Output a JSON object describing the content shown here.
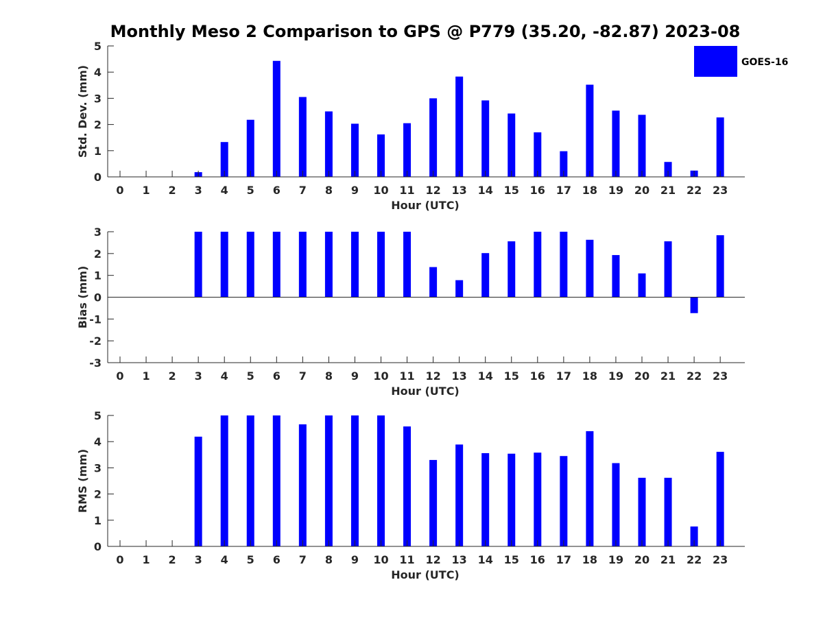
{
  "title": "Monthly Meso 2 Comparison to GPS @ P779 (35.20, -82.87) 2023-08",
  "legend": {
    "label": "GOES-16",
    "color": "#0000ff",
    "placement": "top-right"
  },
  "chart_data": [
    {
      "type": "bar",
      "ylabel": "Std. Dev. (mm)",
      "xlabel": "Hour (UTC)",
      "categories": [
        "0",
        "1",
        "2",
        "3",
        "4",
        "5",
        "6",
        "7",
        "8",
        "9",
        "10",
        "11",
        "12",
        "13",
        "14",
        "15",
        "16",
        "17",
        "18",
        "19",
        "20",
        "21",
        "22",
        "23"
      ],
      "yticks": [
        "0",
        "1",
        "2",
        "3",
        "4",
        "5"
      ],
      "ylim": [
        0,
        5
      ],
      "grid": false,
      "series": [
        {
          "name": "GOES-16",
          "values": [
            null,
            null,
            null,
            0.18,
            1.33,
            2.18,
            4.43,
            3.05,
            2.5,
            2.03,
            1.62,
            2.05,
            3.0,
            3.83,
            2.92,
            2.42,
            1.7,
            0.98,
            3.52,
            2.53,
            2.37,
            0.57,
            0.24,
            2.27
          ]
        }
      ]
    },
    {
      "type": "bar",
      "ylabel": "Bias (mm)",
      "xlabel": "Hour (UTC)",
      "categories": [
        "0",
        "1",
        "2",
        "3",
        "4",
        "5",
        "6",
        "7",
        "8",
        "9",
        "10",
        "11",
        "12",
        "13",
        "14",
        "15",
        "16",
        "17",
        "18",
        "19",
        "20",
        "21",
        "22",
        "23"
      ],
      "yticks": [
        "-3",
        "-2",
        "-1",
        "0",
        "1",
        "2",
        "3"
      ],
      "ylim": [
        -3,
        3
      ],
      "grid": false,
      "series": [
        {
          "name": "GOES-16",
          "values": [
            null,
            null,
            null,
            3.0,
            3.0,
            3.0,
            3.0,
            3.0,
            3.0,
            3.0,
            3.0,
            3.0,
            1.38,
            0.78,
            2.02,
            2.56,
            3.0,
            3.0,
            2.63,
            1.93,
            1.09,
            2.56,
            -0.73,
            2.84
          ]
        }
      ]
    },
    {
      "type": "bar",
      "ylabel": "RMS (mm)",
      "xlabel": "Hour (UTC)",
      "categories": [
        "0",
        "1",
        "2",
        "3",
        "4",
        "5",
        "6",
        "7",
        "8",
        "9",
        "10",
        "11",
        "12",
        "13",
        "14",
        "15",
        "16",
        "17",
        "18",
        "19",
        "20",
        "21",
        "22",
        "23"
      ],
      "yticks": [
        "0",
        "1",
        "2",
        "3",
        "4",
        "5"
      ],
      "ylim": [
        0,
        5
      ],
      "grid": false,
      "series": [
        {
          "name": "GOES-16",
          "values": [
            null,
            null,
            null,
            4.19,
            5.0,
            5.0,
            5.0,
            4.66,
            5.0,
            5.0,
            5.0,
            4.58,
            3.3,
            3.89,
            3.56,
            3.54,
            3.58,
            3.45,
            4.4,
            3.18,
            2.62,
            2.62,
            0.76,
            3.61
          ]
        }
      ]
    }
  ]
}
